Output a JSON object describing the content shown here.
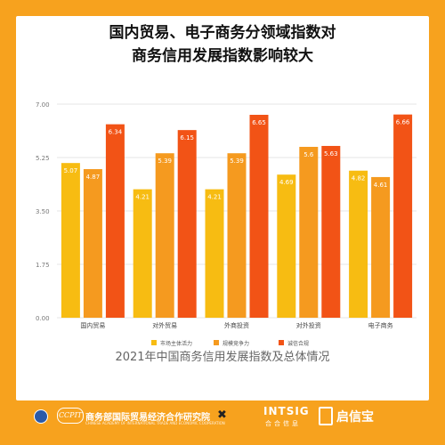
{
  "header": {
    "title_line1": "国内贸易、电子商务分领域指数对",
    "title_line2": "商务信用发展指数影响较大"
  },
  "caption": "2021年中国商务信用发展指数及总体情况",
  "footer": {
    "org_logo_text": "CCPIT",
    "org_name": "商务部国际贸易经济合作研究院",
    "org_name_en": "CHINESE ACADEMY OF INTERNATIONAL TRADE AND ECONOMIC COOPERATION",
    "x_mark": "✖",
    "intsig": "INTSIG",
    "intsig_sub": "合合信息",
    "qxb_name": "启信宝"
  },
  "colors": {
    "background": "#f7a21e",
    "series": [
      "#f7bc12",
      "#f59a1f",
      "#f25316"
    ]
  },
  "chart_data": {
    "type": "bar",
    "title": "国内贸易、电子商务分领域指数对商务信用发展指数影响较大",
    "categories": [
      "国内贸易",
      "对外贸易",
      "外商投资",
      "对外投资",
      "电子商务"
    ],
    "series": [
      {
        "name": "市场主体活力",
        "values": [
          5.07,
          4.21,
          4.21,
          4.69,
          4.82
        ],
        "labels": [
          "5.07",
          "4.21",
          "4.21",
          "4.69",
          "4.82"
        ]
      },
      {
        "name": "规模竞争力",
        "values": [
          4.87,
          5.39,
          5.39,
          5.6,
          4.61
        ],
        "labels": [
          "4.87",
          "5.39",
          "5.39",
          "5.6",
          "4.61"
        ]
      },
      {
        "name": "诚信合规",
        "values": [
          6.34,
          6.15,
          6.65,
          5.63,
          6.66
        ],
        "labels": [
          "6.34",
          "6.15",
          "6.65",
          "5.63",
          "6.66"
        ]
      }
    ],
    "yticks": [
      "0.00",
      "1.75",
      "3.50",
      "5.25",
      "7.00"
    ],
    "ylim": [
      0,
      7
    ],
    "grid": true,
    "legend_position": "bottom"
  }
}
